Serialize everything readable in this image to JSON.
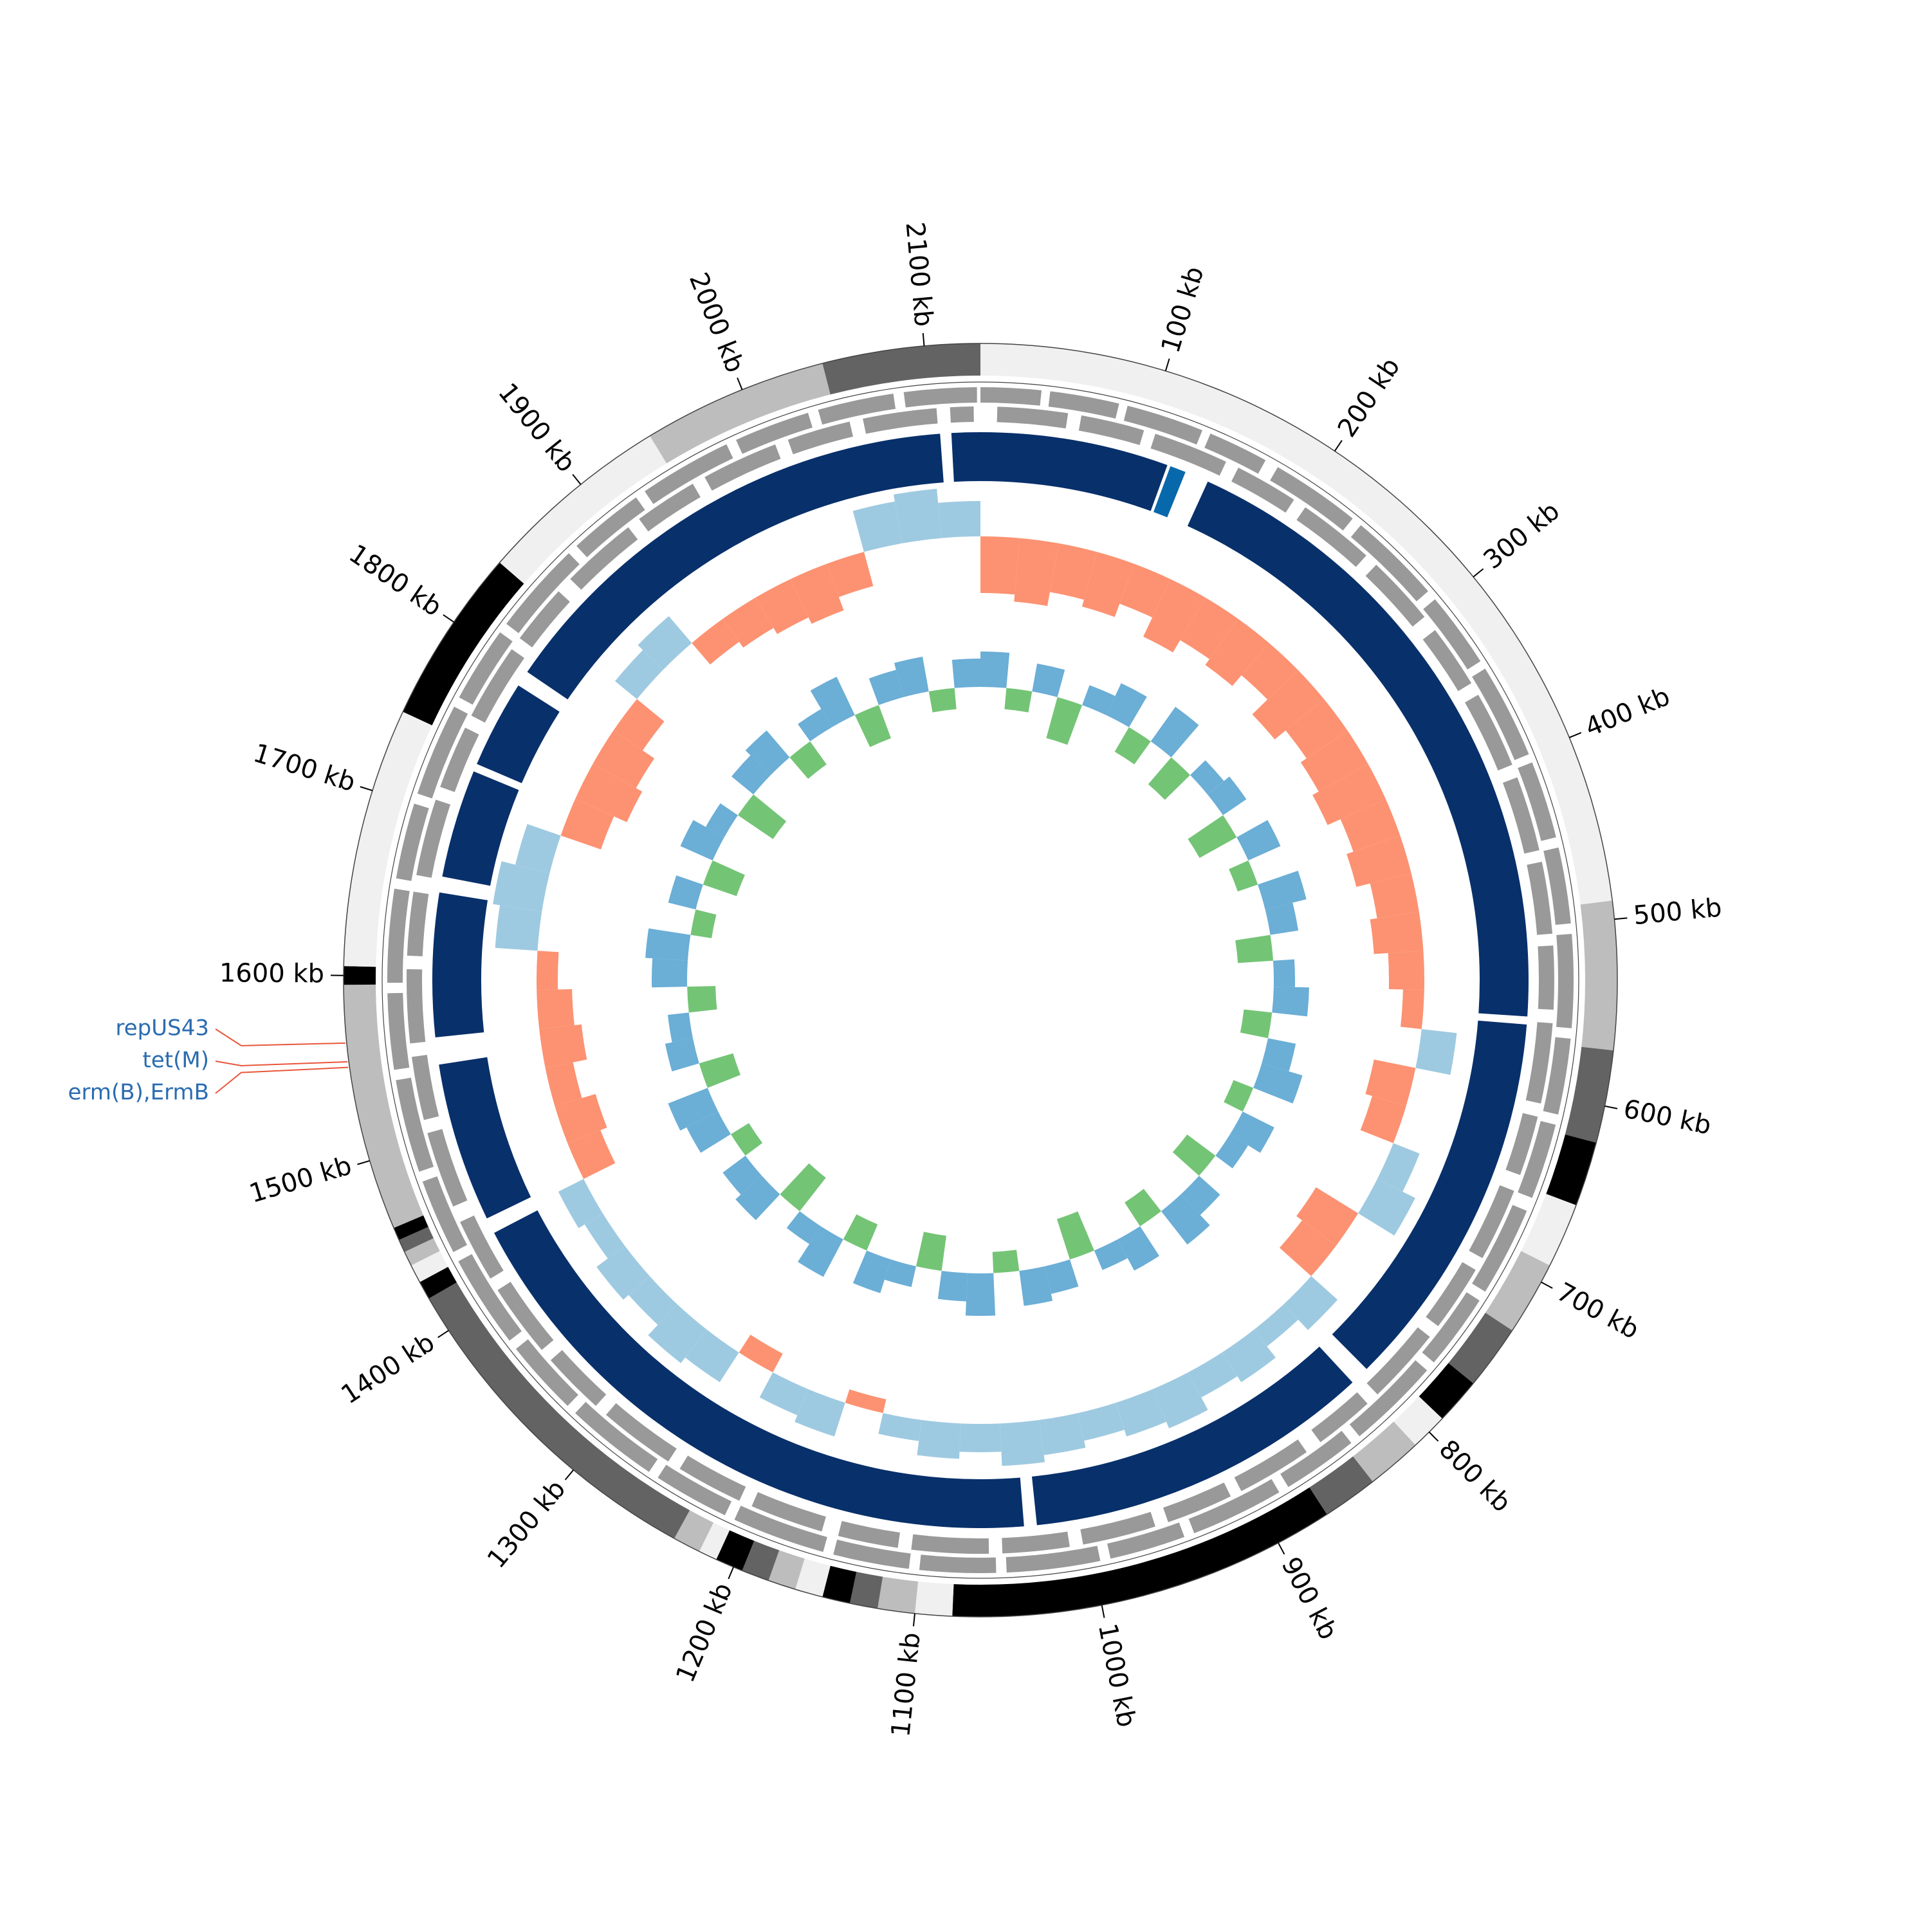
{
  "chart_data": {
    "type": "circos",
    "xlim": [
      0,
      2130
    ],
    "xticks": [
      {
        "value": 100,
        "label": "100 kb"
      },
      {
        "value": 200,
        "label": "200 kb"
      },
      {
        "value": 300,
        "label": "300 kb"
      },
      {
        "value": 400,
        "label": "400 kb"
      },
      {
        "value": 500,
        "label": "500 kb"
      },
      {
        "value": 600,
        "label": "600 kb"
      },
      {
        "value": 700,
        "label": "700 kb"
      },
      {
        "value": 800,
        "label": "800 kb"
      },
      {
        "value": 900,
        "label": "900 kb"
      },
      {
        "value": 1000,
        "label": "1000 kb"
      },
      {
        "value": 1100,
        "label": "1100 kb"
      },
      {
        "value": 1200,
        "label": "1200 kb"
      },
      {
        "value": 1300,
        "label": "1300 kb"
      },
      {
        "value": 1400,
        "label": "1400 kb"
      },
      {
        "value": 1500,
        "label": "1500 kb"
      },
      {
        "value": 1600,
        "label": "1600 kb"
      },
      {
        "value": 1700,
        "label": "1700 kb"
      },
      {
        "value": 1800,
        "label": "1800 kb"
      },
      {
        "value": 1900,
        "label": "1900 kb"
      },
      {
        "value": 2000,
        "label": "2000 kb"
      },
      {
        "value": 2100,
        "label": "2100 kb"
      }
    ],
    "contigs": [
      [
        0,
        490,
        "#f0f0f0"
      ],
      [
        490,
        570,
        "#bdbdbd"
      ],
      [
        570,
        620,
        "#636363"
      ],
      [
        620,
        655,
        "#000000"
      ],
      [
        655,
        690,
        "#f0f0f0"
      ],
      [
        690,
        730,
        "#bdbdbd"
      ],
      [
        730,
        765,
        "#636363"
      ],
      [
        765,
        790,
        "#000000"
      ],
      [
        790,
        810,
        "#f0f0f0"
      ],
      [
        810,
        840,
        "#bdbdbd"
      ],
      [
        840,
        870,
        "#636363"
      ],
      [
        870,
        1080,
        "#000000"
      ],
      [
        1080,
        1100,
        "#f0f0f0"
      ],
      [
        1100,
        1120,
        "#bdbdbd"
      ],
      [
        1120,
        1135,
        "#636363"
      ],
      [
        1135,
        1150,
        "#000000"
      ],
      [
        1150,
        1165,
        "#f0f0f0"
      ],
      [
        1165,
        1180,
        "#bdbdbd"
      ],
      [
        1180,
        1195,
        "#636363"
      ],
      [
        1195,
        1210,
        "#000000"
      ],
      [
        1210,
        1220,
        "#f0f0f0"
      ],
      [
        1220,
        1235,
        "#bdbdbd"
      ],
      [
        1235,
        1420,
        "#636363"
      ],
      [
        1420,
        1430,
        "#000000"
      ],
      [
        1430,
        1440,
        "#f0f0f0"
      ],
      [
        1440,
        1448,
        "#bdbdbd"
      ],
      [
        1448,
        1455,
        "#636363"
      ],
      [
        1455,
        1462,
        "#000000"
      ],
      [
        1462,
        1595,
        "#bdbdbd"
      ],
      [
        1595,
        1605,
        "#000000"
      ],
      [
        1605,
        1745,
        "#f0f0f0"
      ],
      [
        1745,
        1840,
        "#000000"
      ],
      [
        1840,
        1945,
        "#f0f0f0"
      ],
      [
        1945,
        2045,
        "#bdbdbd"
      ],
      [
        2045,
        2130,
        "#636363"
      ]
    ],
    "gene_color": "#999999",
    "genes_plus": [
      [
        0,
        35
      ],
      [
        40,
        80
      ],
      [
        85,
        130
      ],
      [
        135,
        170
      ],
      [
        178,
        230
      ],
      [
        236,
        290
      ],
      [
        296,
        340
      ],
      [
        345,
        400
      ],
      [
        405,
        450
      ],
      [
        456,
        500
      ],
      [
        506,
        560
      ],
      [
        566,
        610
      ],
      [
        616,
        660
      ],
      [
        668,
        720
      ],
      [
        726,
        770
      ],
      [
        776,
        830
      ],
      [
        836,
        880
      ],
      [
        886,
        940
      ],
      [
        946,
        990
      ],
      [
        996,
        1050
      ],
      [
        1056,
        1100
      ],
      [
        1106,
        1150
      ],
      [
        1156,
        1210
      ],
      [
        1216,
        1260
      ],
      [
        1266,
        1320
      ],
      [
        1326,
        1370
      ],
      [
        1376,
        1430
      ],
      [
        1436,
        1480
      ],
      [
        1486,
        1540
      ],
      [
        1546,
        1590
      ],
      [
        1596,
        1650
      ],
      [
        1656,
        1700
      ],
      [
        1706,
        1760
      ],
      [
        1766,
        1810
      ],
      [
        1816,
        1870
      ],
      [
        1876,
        1920
      ],
      [
        1926,
        1980
      ],
      [
        1986,
        2030
      ],
      [
        2036,
        2080
      ],
      [
        2086,
        2128
      ]
    ],
    "genes_minus": [
      [
        10,
        52
      ],
      [
        60,
        98
      ],
      [
        105,
        150
      ],
      [
        158,
        196
      ],
      [
        204,
        250
      ],
      [
        258,
        300
      ],
      [
        310,
        348
      ],
      [
        356,
        402
      ],
      [
        410,
        455
      ],
      [
        462,
        505
      ],
      [
        512,
        550
      ],
      [
        558,
        606
      ],
      [
        614,
        650
      ],
      [
        660,
        704
      ],
      [
        712,
        752
      ],
      [
        760,
        806
      ],
      [
        814,
        850
      ],
      [
        860,
        905
      ],
      [
        912,
        952
      ],
      [
        960,
        1004
      ],
      [
        1012,
        1052
      ],
      [
        1060,
        1106
      ],
      [
        1114,
        1150
      ],
      [
        1160,
        1204
      ],
      [
        1212,
        1252
      ],
      [
        1260,
        1306
      ],
      [
        1314,
        1352
      ],
      [
        1360,
        1404
      ],
      [
        1412,
        1450
      ],
      [
        1460,
        1506
      ],
      [
        1514,
        1552
      ],
      [
        1560,
        1604
      ],
      [
        1612,
        1650
      ],
      [
        1660,
        1706
      ],
      [
        1714,
        1752
      ],
      [
        1760,
        1806
      ],
      [
        1814,
        1850
      ],
      [
        1860,
        1906
      ],
      [
        1914,
        1952
      ],
      [
        1960,
        2006
      ],
      [
        2014,
        2052
      ],
      [
        2060,
        2104
      ],
      [
        2112,
        2126
      ]
    ],
    "blast": [
      [
        0,
        118,
        "#08306b"
      ],
      [
        120,
        130,
        "#0868ac"
      ],
      [
        145,
        555,
        "#08306b"
      ],
      [
        560,
        800,
        "#08306b"
      ],
      [
        812,
        1030,
        "#08306b"
      ],
      [
        1038,
        1435,
        "#08306b"
      ],
      [
        1445,
        1545,
        "#08306b"
      ],
      [
        1562,
        1652,
        "#08306b"
      ],
      [
        1662,
        1730,
        "#08306b"
      ],
      [
        1735,
        1790,
        "#08306b"
      ],
      [
        1800,
        2105,
        "#08306b"
      ],
      [
        2112,
        2130,
        "#08306b"
      ]
    ],
    "x": [
      0,
      30,
      60,
      90,
      120,
      150,
      180,
      210,
      240,
      270,
      300,
      330,
      360,
      390,
      420,
      450,
      480,
      510,
      540,
      570,
      600,
      630,
      660,
      690,
      720,
      750,
      780,
      810,
      840,
      870,
      900,
      930,
      960,
      990,
      1020,
      1050,
      1080,
      1110,
      1140,
      1170,
      1200,
      1230,
      1260,
      1290,
      1320,
      1350,
      1380,
      1410,
      1440,
      1470,
      1500,
      1530,
      1560,
      1590,
      1620,
      1650,
      1680,
      1710,
      1740,
      1770,
      1800,
      1830,
      1860,
      1890,
      1920,
      1950,
      1980,
      2010,
      2040,
      2070,
      2100
    ],
    "gc_skew": {
      "ylim": [
        -1,
        1
      ],
      "positive_color": "#9ecae1",
      "negative_color": "#fc9272",
      "values": [
        -0.8,
        -0.9,
        -0.7,
        -0.8,
        -0.6,
        -0.9,
        -0.7,
        -0.8,
        -0.6,
        -0.9,
        -0.7,
        -0.8,
        -0.9,
        -0.7,
        -0.8,
        -0.6,
        -0.7,
        -0.5,
        -0.3,
        0.5,
        -0.6,
        -0.5,
        0.4,
        0.6,
        -0.7,
        -0.6,
        0.5,
        0.3,
        0.5,
        0.4,
        0.6,
        0.5,
        0.4,
        0.5,
        0.6,
        0.4,
        0.5,
        0.3,
        -0.2,
        0.5,
        0.4,
        -0.3,
        0.5,
        0.6,
        0.4,
        0.5,
        0.3,
        0.4,
        -0.5,
        -0.6,
        -0.4,
        -0.6,
        -0.5,
        -0.3,
        0.6,
        0.7,
        0.5,
        -0.6,
        -0.8,
        -0.7,
        -0.5,
        0.4,
        0.5,
        -0.4,
        -0.5,
        -0.6,
        -0.7,
        -0.5,
        0.6,
        0.7,
        0.5
      ]
    },
    "gc_content": {
      "ylim": [
        -1,
        1
      ],
      "positive_color": "#6baed6",
      "negative_color": "#74c476",
      "values": [
        0.5,
        -0.3,
        0.4,
        -0.6,
        0.3,
        0.5,
        -0.4,
        0.6,
        -0.5,
        0.3,
        0.4,
        -0.6,
        0.5,
        -0.3,
        0.6,
        0.4,
        -0.5,
        0.3,
        0.5,
        -0.4,
        0.4,
        0.6,
        -0.3,
        0.5,
        0.3,
        -0.5,
        0.4,
        0.6,
        -0.4,
        0.5,
        0.3,
        -0.6,
        0.4,
        0.5,
        -0.3,
        0.6,
        0.4,
        -0.5,
        0.3,
        0.5,
        -0.4,
        0.6,
        0.3,
        -0.6,
        0.5,
        0.4,
        -0.3,
        0.5,
        0.6,
        -0.5,
        0.4,
        0.3,
        -0.4,
        0.5,
        0.6,
        -0.3,
        0.4,
        -0.5,
        0.5,
        0.3,
        -0.6,
        0.4,
        0.5,
        -0.4,
        0.3,
        0.6,
        -0.5,
        0.4,
        0.5,
        -0.3,
        0.4
      ]
    },
    "annotation_color": "#2b6cb0",
    "annotation_line_color": "#e8563a",
    "annotations": [
      {
        "label": "repUS43",
        "position": 1564
      },
      {
        "label": "tet(M)",
        "position": 1554
      },
      {
        "label": "erm(B),ErmB",
        "position": 1551
      }
    ]
  }
}
